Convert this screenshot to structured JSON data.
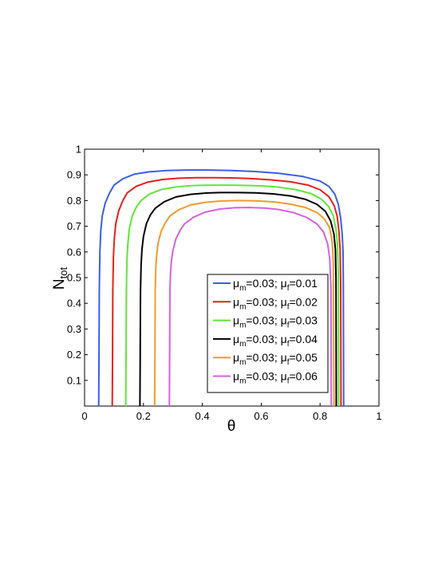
{
  "chart_data": {
    "type": "line",
    "xlabel": "θ",
    "ylabel": {
      "main": "N",
      "sub": "tot"
    },
    "xlim": [
      0,
      1
    ],
    "ylim": [
      0,
      1
    ],
    "xticks": [
      "0",
      "0.2",
      "0.4",
      "0.6",
      "0.8",
      "1"
    ],
    "yticks": [
      "0.1",
      "0.2",
      "0.3",
      "0.4",
      "0.5",
      "0.6",
      "0.7",
      "0.8",
      "0.9",
      "1"
    ],
    "grid": false,
    "legend_position": "bottom-right",
    "series": [
      {
        "name": "μm=0.03; μf=0.01",
        "label_parts": [
          "μ",
          "m",
          "=0.03; μ",
          "f",
          "=0.01"
        ],
        "color": "#3b5ee8",
        "x": [
          0.048,
          0.049,
          0.05,
          0.052,
          0.055,
          0.06,
          0.07,
          0.085,
          0.1,
          0.13,
          0.17,
          0.22,
          0.28,
          0.35,
          0.42,
          0.5,
          0.58,
          0.66,
          0.74,
          0.8,
          0.83,
          0.85,
          0.862,
          0.87,
          0.875,
          0.878,
          0.879,
          0.88
        ],
        "y": [
          0.0,
          0.2,
          0.45,
          0.6,
          0.68,
          0.74,
          0.79,
          0.83,
          0.86,
          0.885,
          0.903,
          0.912,
          0.917,
          0.919,
          0.919,
          0.917,
          0.913,
          0.906,
          0.894,
          0.876,
          0.855,
          0.825,
          0.785,
          0.73,
          0.67,
          0.6,
          0.45,
          0.0
        ]
      },
      {
        "name": "μm=0.03; μf=0.02",
        "label_parts": [
          "μ",
          "m",
          "=0.03; μ",
          "f",
          "=0.02"
        ],
        "color": "#e81e1e",
        "x": [
          0.094,
          0.095,
          0.096,
          0.098,
          0.101,
          0.106,
          0.116,
          0.13,
          0.145,
          0.175,
          0.215,
          0.265,
          0.32,
          0.38,
          0.44,
          0.5,
          0.56,
          0.63,
          0.7,
          0.76,
          0.8,
          0.83,
          0.848,
          0.858,
          0.864,
          0.868,
          0.87,
          0.871
        ],
        "y": [
          0.0,
          0.2,
          0.45,
          0.58,
          0.65,
          0.71,
          0.76,
          0.8,
          0.83,
          0.855,
          0.872,
          0.882,
          0.887,
          0.889,
          0.889,
          0.888,
          0.886,
          0.881,
          0.873,
          0.86,
          0.842,
          0.815,
          0.78,
          0.74,
          0.68,
          0.61,
          0.47,
          0.0
        ]
      },
      {
        "name": "μm=0.03; μf=0.03",
        "label_parts": [
          "μ",
          "m",
          "=0.03; μ",
          "f",
          "=0.03"
        ],
        "color": "#5fe835",
        "x": [
          0.14,
          0.141,
          0.142,
          0.144,
          0.147,
          0.152,
          0.162,
          0.176,
          0.192,
          0.22,
          0.26,
          0.31,
          0.36,
          0.42,
          0.48,
          0.54,
          0.6,
          0.66,
          0.72,
          0.77,
          0.805,
          0.83,
          0.845,
          0.854,
          0.859,
          0.862,
          0.863
        ],
        "y": [
          0.0,
          0.2,
          0.45,
          0.57,
          0.63,
          0.69,
          0.74,
          0.775,
          0.8,
          0.825,
          0.843,
          0.853,
          0.858,
          0.86,
          0.86,
          0.859,
          0.857,
          0.852,
          0.842,
          0.827,
          0.805,
          0.775,
          0.74,
          0.69,
          0.63,
          0.5,
          0.0
        ]
      },
      {
        "name": "μm=0.03; μf=0.04",
        "label_parts": [
          "μ",
          "m",
          "=0.03; μ",
          "f",
          "=0.04"
        ],
        "color": "#000000",
        "x": [
          0.188,
          0.189,
          0.19,
          0.192,
          0.195,
          0.2,
          0.21,
          0.224,
          0.24,
          0.27,
          0.31,
          0.36,
          0.41,
          0.46,
          0.52,
          0.58,
          0.64,
          0.7,
          0.75,
          0.79,
          0.818,
          0.836,
          0.847,
          0.852,
          0.854,
          0.855
        ],
        "y": [
          0.0,
          0.2,
          0.45,
          0.55,
          0.61,
          0.66,
          0.71,
          0.745,
          0.77,
          0.795,
          0.814,
          0.824,
          0.829,
          0.831,
          0.831,
          0.83,
          0.826,
          0.818,
          0.805,
          0.785,
          0.758,
          0.72,
          0.67,
          0.61,
          0.5,
          0.0
        ]
      },
      {
        "name": "μm=0.03; μf=0.05",
        "label_parts": [
          "μ",
          "m",
          "=0.03; μ",
          "f",
          "=0.05"
        ],
        "color": "#f39a2b",
        "x": [
          0.238,
          0.239,
          0.24,
          0.242,
          0.245,
          0.25,
          0.26,
          0.275,
          0.29,
          0.32,
          0.36,
          0.41,
          0.46,
          0.52,
          0.58,
          0.64,
          0.7,
          0.75,
          0.79,
          0.815,
          0.832,
          0.841,
          0.845,
          0.847
        ],
        "y": [
          0.0,
          0.2,
          0.45,
          0.54,
          0.59,
          0.635,
          0.68,
          0.715,
          0.74,
          0.764,
          0.783,
          0.793,
          0.798,
          0.8,
          0.799,
          0.795,
          0.786,
          0.773,
          0.753,
          0.728,
          0.695,
          0.64,
          0.55,
          0.0
        ]
      },
      {
        "name": "μm=0.03; μf=0.06",
        "label_parts": [
          "μ",
          "m",
          "=0.03; μ",
          "f",
          "=0.06"
        ],
        "color": "#d861e0",
        "x": [
          0.288,
          0.289,
          0.29,
          0.292,
          0.295,
          0.3,
          0.31,
          0.325,
          0.34,
          0.37,
          0.41,
          0.46,
          0.51,
          0.56,
          0.61,
          0.66,
          0.71,
          0.755,
          0.79,
          0.812,
          0.826,
          0.833,
          0.837,
          0.838
        ],
        "y": [
          0.0,
          0.2,
          0.45,
          0.52,
          0.565,
          0.605,
          0.65,
          0.685,
          0.71,
          0.735,
          0.755,
          0.767,
          0.772,
          0.773,
          0.771,
          0.765,
          0.753,
          0.734,
          0.708,
          0.677,
          0.63,
          0.57,
          0.45,
          0.0
        ]
      }
    ]
  }
}
